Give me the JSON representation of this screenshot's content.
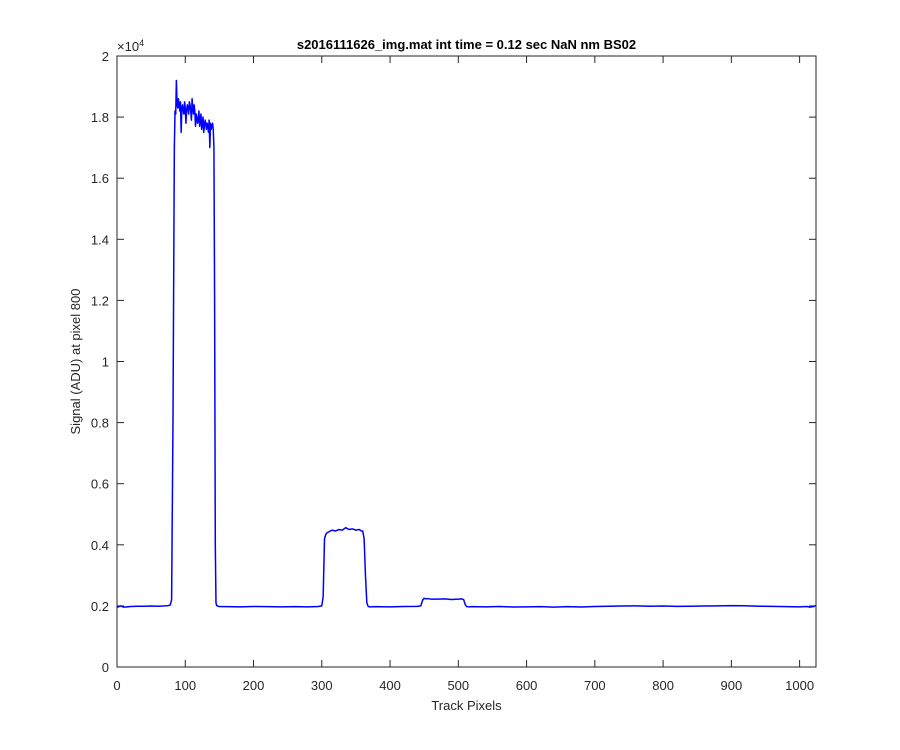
{
  "chart_data": {
    "type": "line",
    "title": "s2016111626_img.mat int time = 0.12 sec  NaN nm BS02",
    "xlabel": "Track Pixels",
    "ylabel": "Signal (ADU) at pixel 800",
    "xlim": [
      0,
      1024
    ],
    "ylim": [
      0,
      20000
    ],
    "y_multiplier_label": "×10",
    "y_multiplier_exponent": "4",
    "xticks": [
      0,
      100,
      200,
      300,
      400,
      500,
      600,
      700,
      800,
      900,
      1000
    ],
    "xtick_labels": [
      "0",
      "100",
      "200",
      "300",
      "400",
      "500",
      "600",
      "700",
      "800",
      "900",
      "1000"
    ],
    "yticks": [
      0,
      2000,
      4000,
      6000,
      8000,
      10000,
      12000,
      14000,
      16000,
      18000,
      20000
    ],
    "ytick_labels": [
      "0",
      "0.2",
      "0.4",
      "0.6",
      "0.8",
      "1",
      "1.2",
      "1.4",
      "1.6",
      "1.8",
      "2"
    ],
    "grid": false,
    "line_color": "#0000ff",
    "series": [
      {
        "x": [
          0,
          5,
          10,
          15,
          20,
          30,
          40,
          50,
          60,
          70,
          75,
          78,
          80,
          82,
          84,
          85,
          86,
          87,
          88,
          89,
          90,
          91,
          92,
          93,
          94,
          95,
          96,
          97,
          98,
          99,
          100,
          101,
          102,
          103,
          104,
          105,
          106,
          107,
          108,
          109,
          110,
          111,
          112,
          113,
          114,
          115,
          116,
          117,
          118,
          119,
          120,
          121,
          122,
          123,
          124,
          125,
          126,
          127,
          128,
          129,
          130,
          131,
          132,
          133,
          134,
          135,
          136,
          137,
          138,
          139,
          140,
          141,
          142,
          143,
          144,
          145,
          146,
          148,
          150,
          160,
          180,
          200,
          220,
          240,
          260,
          280,
          295,
          300,
          302,
          304,
          306,
          308,
          310,
          315,
          320,
          325,
          330,
          335,
          340,
          345,
          350,
          355,
          358,
          360,
          362,
          364,
          366,
          368,
          370,
          380,
          400,
          420,
          440,
          445,
          448,
          450,
          452,
          455,
          460,
          470,
          480,
          490,
          500,
          505,
          508,
          510,
          512,
          515,
          520,
          540,
          560,
          580,
          600,
          620,
          640,
          660,
          680,
          700,
          720,
          740,
          760,
          780,
          800,
          820,
          840,
          860,
          880,
          900,
          920,
          940,
          960,
          980,
          1000,
          1010,
          1015,
          1020,
          1024
        ],
        "y": [
          1950,
          2000,
          1960,
          1970,
          1980,
          1990,
          1990,
          1995,
          1990,
          2000,
          2010,
          2030,
          2200,
          8000,
          17000,
          18200,
          18100,
          19200,
          18400,
          18300,
          18600,
          18400,
          18200,
          18500,
          17500,
          18300,
          18400,
          18200,
          18100,
          18500,
          18300,
          17800,
          18200,
          18400,
          18300,
          18100,
          18500,
          18400,
          18200,
          17900,
          18600,
          18300,
          18100,
          18400,
          18200,
          17700,
          18100,
          18000,
          17800,
          17900,
          18200,
          17700,
          17900,
          18100,
          17600,
          17800,
          18000,
          17500,
          17700,
          17900,
          17800,
          17600,
          17800,
          17700,
          17500,
          17900,
          17000,
          17800,
          17600,
          17700,
          17800,
          17600,
          17000,
          12000,
          4000,
          2100,
          2010,
          1990,
          1980,
          1975,
          1970,
          1980,
          1975,
          1970,
          1975,
          1970,
          1980,
          2000,
          2300,
          4200,
          4350,
          4400,
          4420,
          4480,
          4450,
          4500,
          4480,
          4560,
          4500,
          4520,
          4480,
          4500,
          4450,
          4450,
          4200,
          3000,
          2100,
          1980,
          1970,
          1975,
          1970,
          1980,
          1985,
          2000,
          2200,
          2250,
          2230,
          2240,
          2220,
          2220,
          2230,
          2210,
          2220,
          2230,
          2200,
          2050,
          1980,
          1970,
          1975,
          1970,
          1980,
          1965,
          1970,
          1975,
          1960,
          1975,
          1965,
          1980,
          1990,
          1995,
          2000,
          1990,
          1995,
          1985,
          1990,
          1995,
          2000,
          2010,
          2005,
          1990,
          1985,
          1975,
          1970,
          1980,
          1960,
          1975,
          2010
        ]
      }
    ]
  }
}
